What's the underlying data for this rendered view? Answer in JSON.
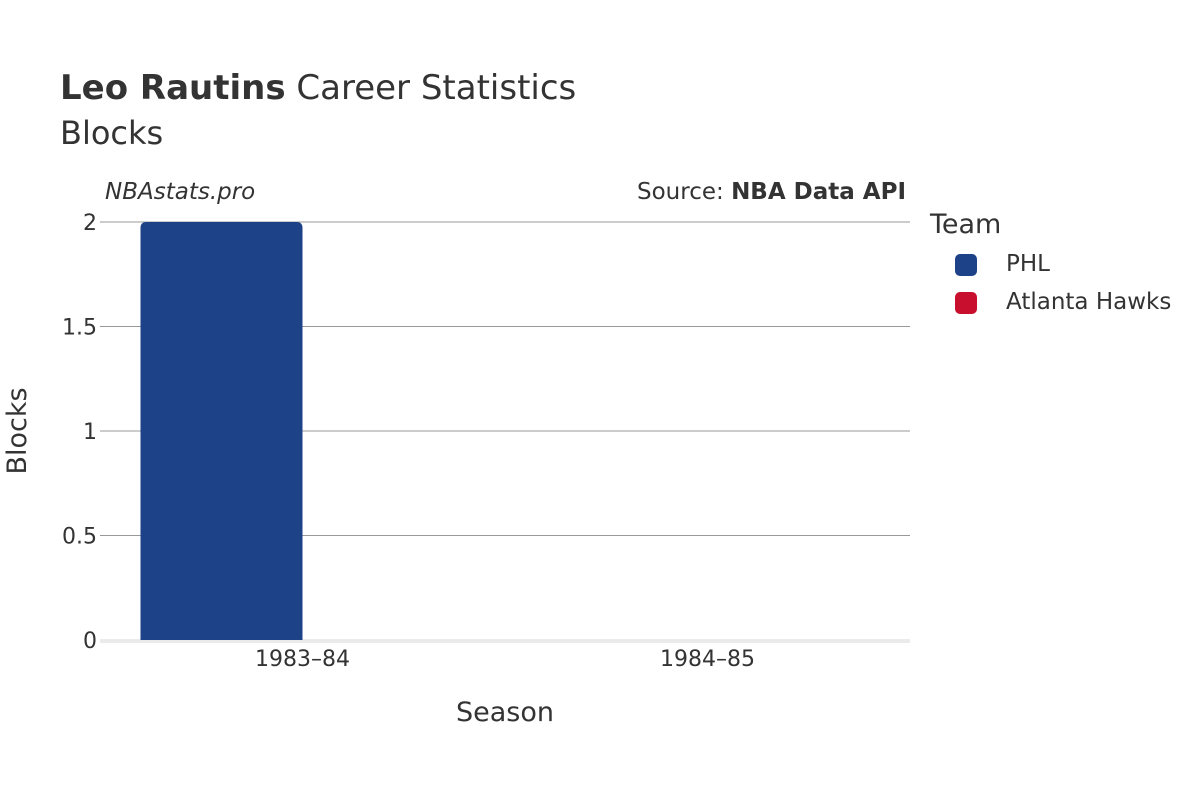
{
  "header": {
    "player_name": "Leo Rautins",
    "title_rest": " Career Statistics",
    "subtitle": "Blocks",
    "watermark": "NBAstats.pro",
    "source_prefix": "Source: ",
    "source_name": "NBA Data API"
  },
  "legend": {
    "title": "Team",
    "items": [
      {
        "label": "PHL",
        "color": "#1d4287"
      },
      {
        "label": "Atlanta Hawks",
        "color": "#c8102e"
      }
    ]
  },
  "chart_data": {
    "type": "bar",
    "xlabel": "Season",
    "ylabel": "Blocks",
    "categories": [
      "1983–84",
      "1984–85"
    ],
    "ylim": [
      0,
      2
    ],
    "yticks": [
      "0",
      "0.5",
      "1",
      "1.5",
      "2"
    ],
    "ytick_values": [
      0,
      0.5,
      1,
      1.5,
      2
    ],
    "grid": true,
    "legend_position": "right",
    "series": [
      {
        "name": "PHL",
        "color": "#1d4287",
        "values": [
          2,
          null
        ]
      },
      {
        "name": "Atlanta Hawks",
        "color": "#c8102e",
        "values": [
          null,
          0
        ]
      }
    ]
  }
}
